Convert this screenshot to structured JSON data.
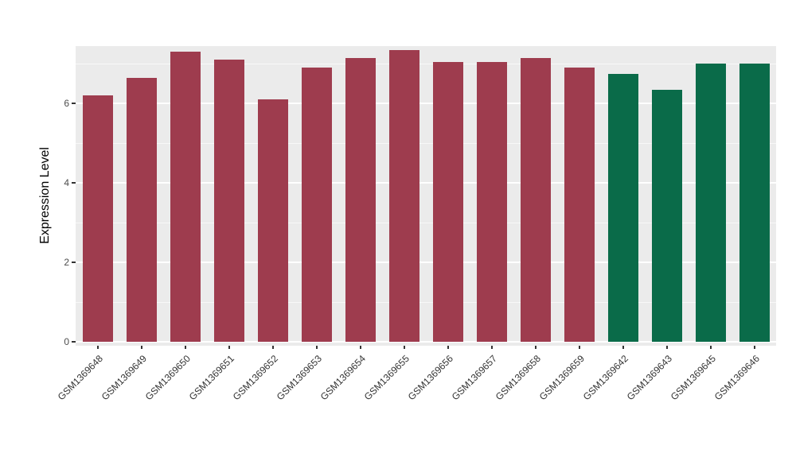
{
  "chart_data": {
    "type": "bar",
    "title": "",
    "xlabel": "",
    "ylabel": "Expression Level",
    "categories": [
      "GSM1369648",
      "GSM1369649",
      "GSM1369650",
      "GSM1369651",
      "GSM1369652",
      "GSM1369653",
      "GSM1369654",
      "GSM1369655",
      "GSM1369656",
      "GSM1369657",
      "GSM1369658",
      "GSM1369659",
      "GSM1369642",
      "GSM1369643",
      "GSM1369645",
      "GSM1369646"
    ],
    "values": [
      6.2,
      6.65,
      7.3,
      7.1,
      6.1,
      6.9,
      7.15,
      7.35,
      7.05,
      7.05,
      7.15,
      6.9,
      6.75,
      6.35,
      7.0,
      7.0
    ],
    "colors": [
      "#9e3c4e",
      "#9e3c4e",
      "#9e3c4e",
      "#9e3c4e",
      "#9e3c4e",
      "#9e3c4e",
      "#9e3c4e",
      "#9e3c4e",
      "#9e3c4e",
      "#9e3c4e",
      "#9e3c4e",
      "#9e3c4e",
      "#0a6b49",
      "#0a6b49",
      "#0a6b49",
      "#0a6b49"
    ],
    "group_colors": {
      "maroon_group": "#9e3c4e",
      "green_group": "#0a6b49"
    },
    "yticks": [
      0,
      2,
      4,
      6
    ],
    "minor_gridlines": [
      1,
      3,
      5,
      7
    ],
    "ylim": [
      0,
      7.54
    ],
    "grid": true,
    "legend_position": "none",
    "panel_background": "#ebebeb",
    "gridline_color": "#ffffff",
    "axis_text_color": "#4d4d4d"
  }
}
